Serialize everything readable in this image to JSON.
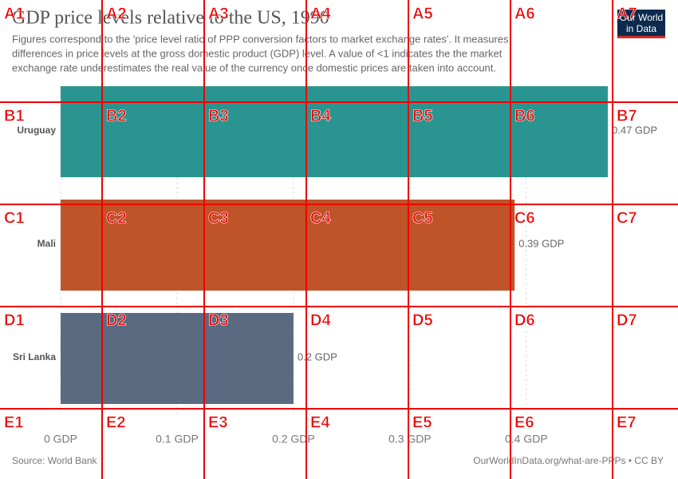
{
  "chart_data": {
    "type": "bar",
    "orientation": "horizontal",
    "title": "GDP price levels relative to the US, 1990",
    "subtitle": [
      "Figures correspond to the 'price level ratio of PPP conversion factors to market exchange rates'. It measures",
      "differences in price levels at the gross domestic product (GDP) level. A value of <1 indicates the the market",
      "exchange rate underestimates the real value of the currency once domestic prices are taken into account."
    ],
    "categories": [
      "Uruguay",
      "Mali",
      "Sri Lanka"
    ],
    "values": [
      0.47,
      0.39,
      0.2
    ],
    "value_labels": [
      "0.47 GDP",
      "0.39 GDP",
      "0.2 GDP"
    ],
    "colors": [
      "#2a9590",
      "#bf5428",
      "#5a6a80"
    ],
    "xlim": [
      0,
      0.47
    ],
    "xticks": [
      {
        "value": 0,
        "label": "0 GDP"
      },
      {
        "value": 0.1,
        "label": "0.1 GDP"
      },
      {
        "value": 0.2,
        "label": "0.2 GDP"
      },
      {
        "value": 0.3,
        "label": "0.3 GDP"
      },
      {
        "value": 0.4,
        "label": "0.4 GDP"
      }
    ],
    "grid": true,
    "source": "Source: World Bank",
    "credit": "OurWorldInData.org/what-are-PPPs • CC BY",
    "logo": [
      "Our World",
      "in Data"
    ]
  },
  "overlay_labels": [
    [
      "A1",
      "A2",
      "A3",
      "A4",
      "A5",
      "A6",
      "A7"
    ],
    [
      "B1",
      "B2",
      "B3",
      "B4",
      "B5",
      "B6",
      "B7"
    ],
    [
      "C1",
      "C2",
      "C3",
      "C4",
      "C5",
      "C6",
      "C7"
    ],
    [
      "D1",
      "D2",
      "D3",
      "D4",
      "D5",
      "D6",
      "D7"
    ],
    [
      "E1",
      "E2",
      "E3",
      "E4",
      "E5",
      "E6",
      "E7"
    ]
  ]
}
